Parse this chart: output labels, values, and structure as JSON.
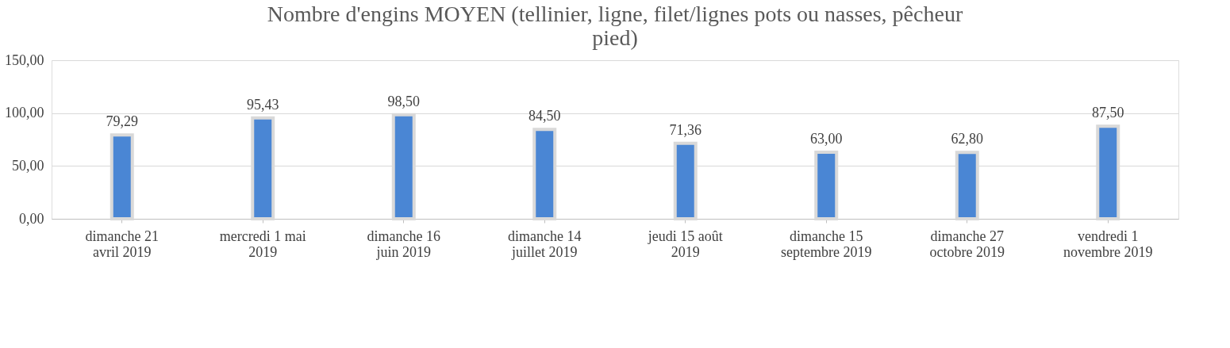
{
  "chart_data": {
    "type": "bar",
    "title": "Nombre d'engins MOYEN (tellinier, ligne, filet/lignes pots ou nasses, pêcheur pied)",
    "categories": [
      "dimanche 21 avril 2019",
      "mercredi 1 mai 2019",
      "dimanche 16 juin 2019",
      "dimanche 14 juillet 2019",
      "jeudi 15 août 2019",
      "dimanche 15 septembre 2019",
      "dimanche 27 octobre 2019",
      "vendredi 1 novembre 2019"
    ],
    "values": [
      79.29,
      95.43,
      98.5,
      84.5,
      71.36,
      63.0,
      62.8,
      87.5
    ],
    "value_labels": [
      "79,29",
      "95,43",
      "98,50",
      "84,50",
      "71,36",
      "63,00",
      "62,80",
      "87,50"
    ],
    "color": "#4a86d4",
    "ylim": [
      0,
      150
    ],
    "yticks": [
      {
        "value": 0,
        "label": "0,00"
      },
      {
        "value": 50,
        "label": "50,00"
      },
      {
        "value": 100,
        "label": "100,00"
      },
      {
        "value": 150,
        "label": "150,00"
      }
    ],
    "grid": "y"
  }
}
